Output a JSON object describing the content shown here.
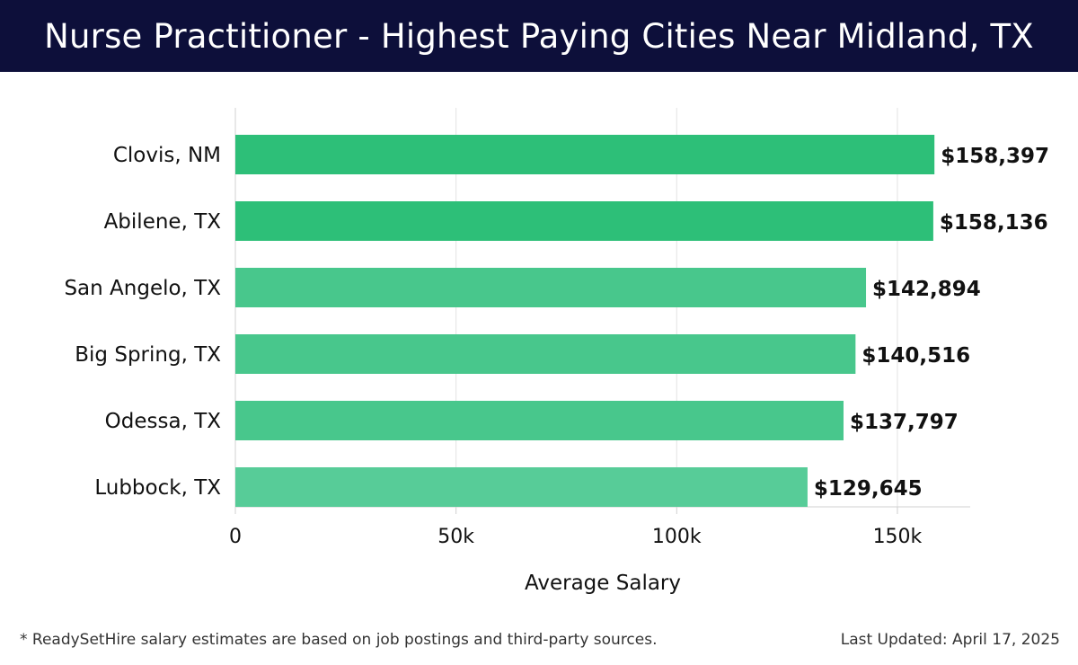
{
  "header": {
    "title": "Nurse Practitioner - Highest Paying Cities Near Midland, TX"
  },
  "footer": {
    "note": "* ReadySetHire salary estimates are based on job postings and third-party sources.",
    "updated": "Last Updated: April 17, 2025"
  },
  "colors": {
    "header_bg": "#0d0f3a",
    "bar_top": "#2dbf78",
    "bar_mid": "#48c78c",
    "bar_low": "#57cc98"
  },
  "chart_data": {
    "type": "bar",
    "orientation": "horizontal",
    "categories": [
      "Clovis, NM",
      "Abilene, TX",
      "San Angelo, TX",
      "Big Spring, TX",
      "Odessa, TX",
      "Lubbock, TX"
    ],
    "values": [
      158397,
      158136,
      142894,
      140516,
      137797,
      129645
    ],
    "value_labels": [
      "$158,397",
      "$158,136",
      "$142,894",
      "$140,516",
      "$137,797",
      "$129,645"
    ],
    "xlabel": "Average Salary",
    "xticks": [
      0,
      50000,
      100000,
      150000
    ],
    "xtick_labels": [
      "0",
      "50k",
      "100k",
      "150k"
    ],
    "xlim": [
      0,
      166500
    ],
    "grid": true
  }
}
